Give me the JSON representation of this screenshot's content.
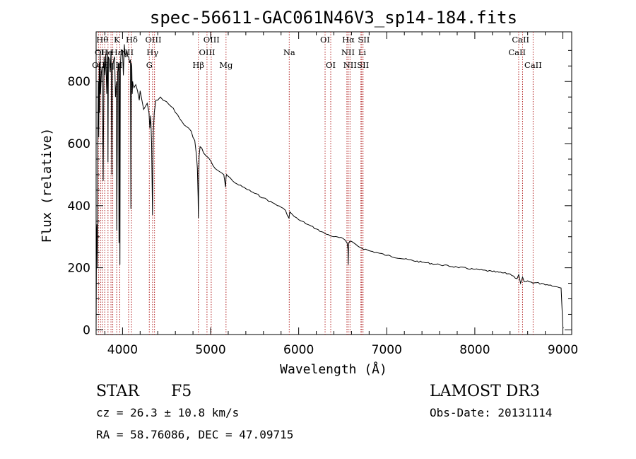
{
  "chart_data": {
    "type": "line",
    "title": "spec-56611-GAC061N46V3_sp14-184.fits",
    "xlabel": "Wavelength (Å)",
    "ylabel": "Flux (relative)",
    "xlim": [
      3700,
      9100
    ],
    "ylim": [
      -15,
      960
    ],
    "x_ticks": [
      4000,
      5000,
      6000,
      7000,
      8000,
      9000
    ],
    "y_ticks": [
      0,
      200,
      400,
      600,
      800
    ],
    "series": [
      {
        "name": "spectrum",
        "x": [
          3700,
          3705,
          3710,
          3715,
          3720,
          3725,
          3730,
          3735,
          3740,
          3745,
          3750,
          3760,
          3770,
          3780,
          3790,
          3800,
          3810,
          3820,
          3830,
          3835,
          3840,
          3850,
          3860,
          3870,
          3880,
          3885,
          3890,
          3900,
          3910,
          3920,
          3930,
          3935,
          3945,
          3955,
          3960,
          3965,
          3970,
          3975,
          3985,
          4000,
          4010,
          4020,
          4030,
          4040,
          4050,
          4060,
          4070,
          4080,
          4090,
          4095,
          4100,
          4105,
          4110,
          4115,
          4120,
          4130,
          4150,
          4170,
          4190,
          4200,
          4220,
          4240,
          4260,
          4280,
          4300,
          4310,
          4320,
          4330,
          4340,
          4345,
          4350,
          4360,
          4380,
          4400,
          4430,
          4460,
          4500,
          4550,
          4600,
          4650,
          4700,
          4750,
          4780,
          4800,
          4820,
          4840,
          4850,
          4858,
          4861,
          4864,
          4870,
          4880,
          4900,
          4920,
          4950,
          5000,
          5050,
          5100,
          5150,
          5170,
          5175,
          5180,
          5200,
          5250,
          5300,
          5400,
          5500,
          5600,
          5700,
          5800,
          5850,
          5890,
          5900,
          5950,
          6000,
          6100,
          6200,
          6300,
          6400,
          6500,
          6550,
          6560,
          6563,
          6566,
          6570,
          6580,
          6600,
          6650,
          6700,
          6800,
          6900,
          7000,
          7200,
          7400,
          7600,
          7800,
          8000,
          8200,
          8400,
          8480,
          8498,
          8520,
          8542,
          8560,
          8600,
          8662,
          8700,
          8800,
          8900,
          8980,
          9000,
          9005
        ],
        "values": [
          0,
          300,
          340,
          200,
          650,
          800,
          620,
          860,
          700,
          900,
          760,
          830,
          850,
          480,
          880,
          820,
          890,
          760,
          900,
          540,
          880,
          870,
          830,
          900,
          500,
          860,
          850,
          870,
          880,
          750,
          800,
          320,
          830,
          860,
          280,
          860,
          210,
          850,
          900,
          900,
          820,
          920,
          880,
          880,
          900,
          880,
          880,
          860,
          870,
          390,
          860,
          850,
          760,
          800,
          790,
          780,
          790,
          770,
          740,
          770,
          740,
          710,
          720,
          730,
          700,
          650,
          690,
          600,
          370,
          530,
          640,
          700,
          740,
          740,
          750,
          740,
          735,
          720,
          700,
          680,
          660,
          650,
          640,
          620,
          610,
          560,
          520,
          430,
          360,
          450,
          560,
          590,
          585,
          570,
          560,
          545,
          520,
          510,
          500,
          460,
          490,
          500,
          495,
          480,
          470,
          455,
          440,
          425,
          410,
          395,
          385,
          360,
          380,
          365,
          355,
          340,
          325,
          310,
          300,
          295,
          280,
          260,
          210,
          270,
          280,
          285,
          285,
          275,
          265,
          255,
          248,
          240,
          228,
          218,
          210,
          202,
          195,
          188,
          180,
          165,
          178,
          150,
          170,
          155,
          158,
          150,
          152,
          145,
          140,
          135,
          10,
          5
        ]
      }
    ],
    "line_markers": {
      "wavelengths": [
        3727,
        3750,
        3771,
        3798,
        3835,
        3869,
        3889,
        3934,
        3969,
        4069,
        4102,
        4304,
        4341,
        4363,
        4861,
        4959,
        5007,
        5175,
        5893,
        6300,
        6364,
        6548,
        6563,
        6583,
        6707,
        6716,
        6731,
        8498,
        8542,
        8662
      ],
      "labels": [
        {
          "text": "Hθ",
          "x": 3770,
          "row": 0
        },
        {
          "text": "K",
          "x": 3935,
          "row": 0
        },
        {
          "text": "Hδ",
          "x": 4105,
          "row": 0
        },
        {
          "text": "OIII",
          "x": 4350,
          "row": 0
        },
        {
          "text": "OIII",
          "x": 5010,
          "row": 0
        },
        {
          "text": "OI",
          "x": 6300,
          "row": 0
        },
        {
          "text": "Hα",
          "x": 6565,
          "row": 0
        },
        {
          "text": "SII",
          "x": 6740,
          "row": 0
        },
        {
          "text": "CaII",
          "x": 8520,
          "row": 0
        },
        {
          "text": "OI",
          "x": 3740,
          "row": 1
        },
        {
          "text": "He",
          "x": 3820,
          "row": 1
        },
        {
          "text": "Hε",
          "x": 3930,
          "row": 1
        },
        {
          "text": "NII",
          "x": 4050,
          "row": 1
        },
        {
          "text": "Hγ",
          "x": 4340,
          "row": 1
        },
        {
          "text": "OIII",
          "x": 4960,
          "row": 1
        },
        {
          "text": "Na",
          "x": 5893,
          "row": 1
        },
        {
          "text": "NII",
          "x": 6560,
          "row": 1
        },
        {
          "text": "Li",
          "x": 6720,
          "row": 1
        },
        {
          "text": "CaII",
          "x": 8480,
          "row": 1
        },
        {
          "text": "OII",
          "x": 3727,
          "row": 2
        },
        {
          "text": "Hη",
          "x": 3835,
          "row": 2
        },
        {
          "text": "H",
          "x": 3960,
          "row": 2
        },
        {
          "text": "G",
          "x": 4305,
          "row": 2
        },
        {
          "text": "Hβ",
          "x": 4861,
          "row": 2
        },
        {
          "text": "Mg",
          "x": 5175,
          "row": 2
        },
        {
          "text": "OI",
          "x": 6364,
          "row": 2
        },
        {
          "text": "NII",
          "x": 6583,
          "row": 2
        },
        {
          "text": "SII",
          "x": 6731,
          "row": 2
        },
        {
          "text": "CaII",
          "x": 8662,
          "row": 2
        }
      ]
    }
  },
  "info": {
    "class_label": "STAR",
    "subclass": "F5",
    "survey": "LAMOST DR3",
    "cz": "cz = 26.3 ± 10.8 km/s",
    "obs_date": "Obs-Date: 20131114",
    "coords": "RA =  58.76086, DEC =  47.09715"
  }
}
